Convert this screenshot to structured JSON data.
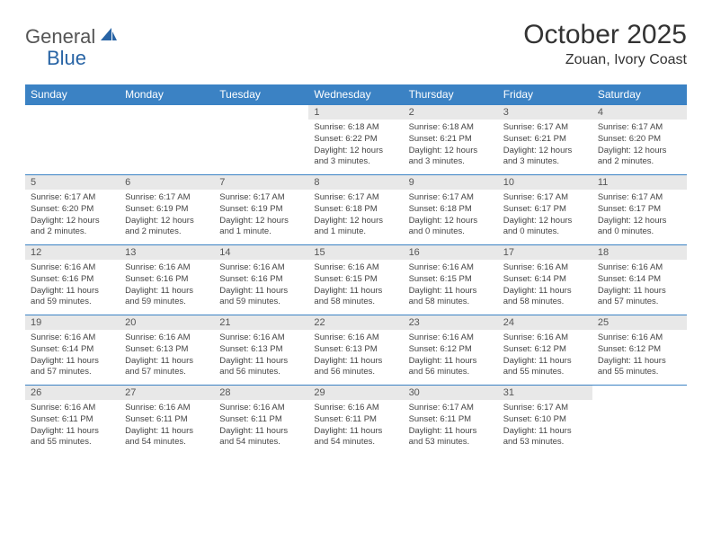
{
  "brand": {
    "part1": "General",
    "part2": "Blue"
  },
  "title": "October 2025",
  "location": "Zouan, Ivory Coast",
  "colors": {
    "header_bg": "#3b82c4",
    "header_text": "#ffffff",
    "daynum_bg": "#e8e8e8",
    "border": "#3b82c4",
    "brand_blue": "#2864a5"
  },
  "fonts": {
    "title_size": 30,
    "location_size": 16,
    "header_size": 12,
    "body_size": 9.5
  },
  "day_headers": [
    "Sunday",
    "Monday",
    "Tuesday",
    "Wednesday",
    "Thursday",
    "Friday",
    "Saturday"
  ],
  "weeks": [
    [
      {
        "n": "",
        "sr": "",
        "ss": "",
        "dl": ""
      },
      {
        "n": "",
        "sr": "",
        "ss": "",
        "dl": ""
      },
      {
        "n": "",
        "sr": "",
        "ss": "",
        "dl": ""
      },
      {
        "n": "1",
        "sr": "Sunrise: 6:18 AM",
        "ss": "Sunset: 6:22 PM",
        "dl": "Daylight: 12 hours and 3 minutes."
      },
      {
        "n": "2",
        "sr": "Sunrise: 6:18 AM",
        "ss": "Sunset: 6:21 PM",
        "dl": "Daylight: 12 hours and 3 minutes."
      },
      {
        "n": "3",
        "sr": "Sunrise: 6:17 AM",
        "ss": "Sunset: 6:21 PM",
        "dl": "Daylight: 12 hours and 3 minutes."
      },
      {
        "n": "4",
        "sr": "Sunrise: 6:17 AM",
        "ss": "Sunset: 6:20 PM",
        "dl": "Daylight: 12 hours and 2 minutes."
      }
    ],
    [
      {
        "n": "5",
        "sr": "Sunrise: 6:17 AM",
        "ss": "Sunset: 6:20 PM",
        "dl": "Daylight: 12 hours and 2 minutes."
      },
      {
        "n": "6",
        "sr": "Sunrise: 6:17 AM",
        "ss": "Sunset: 6:19 PM",
        "dl": "Daylight: 12 hours and 2 minutes."
      },
      {
        "n": "7",
        "sr": "Sunrise: 6:17 AM",
        "ss": "Sunset: 6:19 PM",
        "dl": "Daylight: 12 hours and 1 minute."
      },
      {
        "n": "8",
        "sr": "Sunrise: 6:17 AM",
        "ss": "Sunset: 6:18 PM",
        "dl": "Daylight: 12 hours and 1 minute."
      },
      {
        "n": "9",
        "sr": "Sunrise: 6:17 AM",
        "ss": "Sunset: 6:18 PM",
        "dl": "Daylight: 12 hours and 0 minutes."
      },
      {
        "n": "10",
        "sr": "Sunrise: 6:17 AM",
        "ss": "Sunset: 6:17 PM",
        "dl": "Daylight: 12 hours and 0 minutes."
      },
      {
        "n": "11",
        "sr": "Sunrise: 6:17 AM",
        "ss": "Sunset: 6:17 PM",
        "dl": "Daylight: 12 hours and 0 minutes."
      }
    ],
    [
      {
        "n": "12",
        "sr": "Sunrise: 6:16 AM",
        "ss": "Sunset: 6:16 PM",
        "dl": "Daylight: 11 hours and 59 minutes."
      },
      {
        "n": "13",
        "sr": "Sunrise: 6:16 AM",
        "ss": "Sunset: 6:16 PM",
        "dl": "Daylight: 11 hours and 59 minutes."
      },
      {
        "n": "14",
        "sr": "Sunrise: 6:16 AM",
        "ss": "Sunset: 6:16 PM",
        "dl": "Daylight: 11 hours and 59 minutes."
      },
      {
        "n": "15",
        "sr": "Sunrise: 6:16 AM",
        "ss": "Sunset: 6:15 PM",
        "dl": "Daylight: 11 hours and 58 minutes."
      },
      {
        "n": "16",
        "sr": "Sunrise: 6:16 AM",
        "ss": "Sunset: 6:15 PM",
        "dl": "Daylight: 11 hours and 58 minutes."
      },
      {
        "n": "17",
        "sr": "Sunrise: 6:16 AM",
        "ss": "Sunset: 6:14 PM",
        "dl": "Daylight: 11 hours and 58 minutes."
      },
      {
        "n": "18",
        "sr": "Sunrise: 6:16 AM",
        "ss": "Sunset: 6:14 PM",
        "dl": "Daylight: 11 hours and 57 minutes."
      }
    ],
    [
      {
        "n": "19",
        "sr": "Sunrise: 6:16 AM",
        "ss": "Sunset: 6:14 PM",
        "dl": "Daylight: 11 hours and 57 minutes."
      },
      {
        "n": "20",
        "sr": "Sunrise: 6:16 AM",
        "ss": "Sunset: 6:13 PM",
        "dl": "Daylight: 11 hours and 57 minutes."
      },
      {
        "n": "21",
        "sr": "Sunrise: 6:16 AM",
        "ss": "Sunset: 6:13 PM",
        "dl": "Daylight: 11 hours and 56 minutes."
      },
      {
        "n": "22",
        "sr": "Sunrise: 6:16 AM",
        "ss": "Sunset: 6:13 PM",
        "dl": "Daylight: 11 hours and 56 minutes."
      },
      {
        "n": "23",
        "sr": "Sunrise: 6:16 AM",
        "ss": "Sunset: 6:12 PM",
        "dl": "Daylight: 11 hours and 56 minutes."
      },
      {
        "n": "24",
        "sr": "Sunrise: 6:16 AM",
        "ss": "Sunset: 6:12 PM",
        "dl": "Daylight: 11 hours and 55 minutes."
      },
      {
        "n": "25",
        "sr": "Sunrise: 6:16 AM",
        "ss": "Sunset: 6:12 PM",
        "dl": "Daylight: 11 hours and 55 minutes."
      }
    ],
    [
      {
        "n": "26",
        "sr": "Sunrise: 6:16 AM",
        "ss": "Sunset: 6:11 PM",
        "dl": "Daylight: 11 hours and 55 minutes."
      },
      {
        "n": "27",
        "sr": "Sunrise: 6:16 AM",
        "ss": "Sunset: 6:11 PM",
        "dl": "Daylight: 11 hours and 54 minutes."
      },
      {
        "n": "28",
        "sr": "Sunrise: 6:16 AM",
        "ss": "Sunset: 6:11 PM",
        "dl": "Daylight: 11 hours and 54 minutes."
      },
      {
        "n": "29",
        "sr": "Sunrise: 6:16 AM",
        "ss": "Sunset: 6:11 PM",
        "dl": "Daylight: 11 hours and 54 minutes."
      },
      {
        "n": "30",
        "sr": "Sunrise: 6:17 AM",
        "ss": "Sunset: 6:11 PM",
        "dl": "Daylight: 11 hours and 53 minutes."
      },
      {
        "n": "31",
        "sr": "Sunrise: 6:17 AM",
        "ss": "Sunset: 6:10 PM",
        "dl": "Daylight: 11 hours and 53 minutes."
      },
      {
        "n": "",
        "sr": "",
        "ss": "",
        "dl": ""
      }
    ]
  ]
}
